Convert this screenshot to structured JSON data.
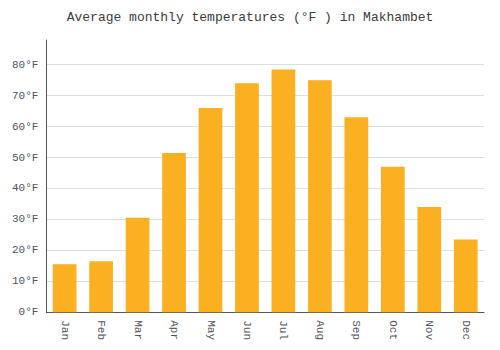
{
  "chart_data": {
    "type": "bar",
    "title": "Average monthly temperatures (°F ) in Makhambet",
    "categories": [
      "Jan",
      "Feb",
      "Mar",
      "Apr",
      "May",
      "Jun",
      "Jul",
      "Aug",
      "Sep",
      "Oct",
      "Nov",
      "Dec"
    ],
    "values": [
      15.5,
      16.5,
      30.5,
      51.5,
      66,
      74,
      78.5,
      75,
      63,
      47,
      34,
      23.5
    ],
    "color": "#FBB022",
    "ylim": [
      0,
      88
    ],
    "yticks": [
      {
        "value": 0,
        "label": "0°F"
      },
      {
        "value": 10,
        "label": "10°F"
      },
      {
        "value": 20,
        "label": "20°F"
      },
      {
        "value": 30,
        "label": "30°F"
      },
      {
        "value": 40,
        "label": "40°F"
      },
      {
        "value": 50,
        "label": "50°F"
      },
      {
        "value": 60,
        "label": "60°F"
      },
      {
        "value": 70,
        "label": "70°F"
      },
      {
        "value": 80,
        "label": "80°F"
      }
    ],
    "grid": true
  }
}
